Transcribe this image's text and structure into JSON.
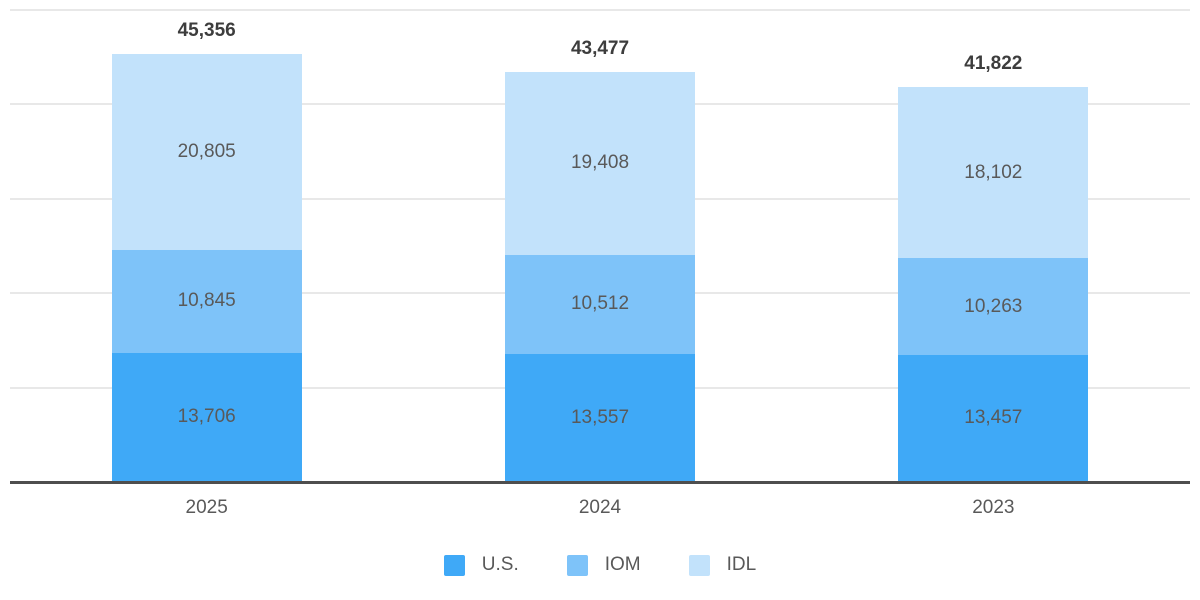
{
  "chart_data": {
    "type": "bar",
    "stacked": true,
    "categories": [
      "2025",
      "2024",
      "2023"
    ],
    "series": [
      {
        "id": "us",
        "name": "U.S.",
        "color": "#3FA9F7",
        "values": [
          13706,
          13557,
          13457
        ],
        "value_labels": [
          "13,706",
          "13,557",
          "13,457"
        ]
      },
      {
        "id": "iom",
        "name": "IOM",
        "color": "#7EC3F9",
        "values": [
          10845,
          10512,
          10263
        ],
        "value_labels": [
          "10,845",
          "10,512",
          "10,263"
        ]
      },
      {
        "id": "idl",
        "name": "IDL",
        "color": "#C2E2FB",
        "values": [
          20805,
          19408,
          18102
        ],
        "value_labels": [
          "20,805",
          "19,408",
          "18,102"
        ]
      }
    ],
    "totals": [
      45356,
      43477,
      41822
    ],
    "total_labels": [
      "45,356",
      "43,477",
      "41,822"
    ],
    "ylim": [
      0,
      50000
    ],
    "grid_interval": 10000,
    "grid": true,
    "y_axis_tick_labels_visible": false,
    "legend": {
      "position": "bottom",
      "entries": [
        "U.S.",
        "IOM",
        "IDL"
      ]
    }
  },
  "style": {
    "background": "#ffffff",
    "grid_color": "#e8e8e8",
    "axis_color": "#4e4e4e",
    "value_label_color": "#595959",
    "total_label_color": "#3d3d3d"
  }
}
